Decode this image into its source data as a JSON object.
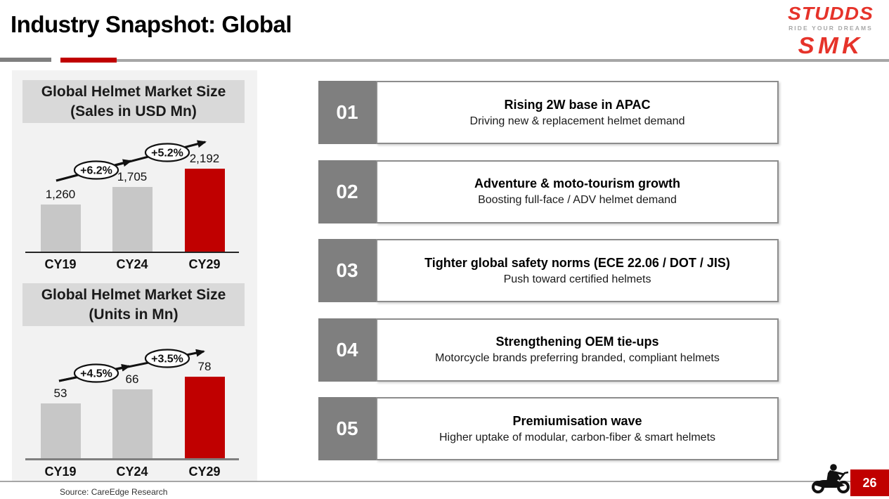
{
  "slide": {
    "title": "Industry Snapshot: Global",
    "page_number": "26",
    "source": "Source: CareEdge Research"
  },
  "logo": {
    "brand": "STUDDS",
    "tagline": "RIDE YOUR DREAMS",
    "sub_brand": "SMK"
  },
  "colors": {
    "accent_red": "#C00000",
    "bar_gray": "#C7C7C7",
    "badge_gray": "#7F7F7F",
    "panel_bg": "#F2F2F2",
    "chart_header_bg": "#D9D9D9",
    "logo_red": "#E6332A"
  },
  "chart_data": [
    {
      "type": "bar",
      "title": "Global Helmet Market Size (Sales in USD Mn)",
      "title_line1": "Global Helmet Market Size",
      "title_line2": "(Sales in USD Mn)",
      "categories": [
        "CY19",
        "CY24",
        "CY29"
      ],
      "values": [
        1260,
        1705,
        2192
      ],
      "value_labels": [
        "1,260",
        "1,705",
        "2,192"
      ],
      "growth_labels": [
        "+6.2%",
        "+5.2%"
      ],
      "bar_colors": [
        "#C7C7C7",
        "#C7C7C7",
        "#C00000"
      ],
      "xlabel": "",
      "ylabel": "Sales in USD Mn",
      "ylim": [
        0,
        2400
      ],
      "grid": false,
      "legend": "none"
    },
    {
      "type": "bar",
      "title": "Global Helmet Market Size (Units in Mn)",
      "title_line1": "Global Helmet Market Size",
      "title_line2": "(Units in Mn)",
      "categories": [
        "CY19",
        "CY24",
        "CY29"
      ],
      "values": [
        53,
        66,
        78
      ],
      "value_labels": [
        "53",
        "66",
        "78"
      ],
      "growth_labels": [
        "+4.5%",
        "+3.5%"
      ],
      "bar_colors": [
        "#C7C7C7",
        "#C7C7C7",
        "#C00000"
      ],
      "xlabel": "",
      "ylabel": "Units in Mn",
      "ylim": [
        0,
        90
      ],
      "grid": false,
      "legend": "none"
    }
  ],
  "insights": [
    {
      "number": "01",
      "title": "Rising 2W base in APAC",
      "subtitle": "Driving new & replacement helmet demand"
    },
    {
      "number": "02",
      "title": "Adventure & moto-tourism growth",
      "subtitle": "Boosting full-face / ADV helmet demand"
    },
    {
      "number": "03",
      "title": "Tighter global safety norms (ECE 22.06 / DOT / JIS)",
      "subtitle": "Push toward certified helmets"
    },
    {
      "number": "04",
      "title": "Strengthening OEM tie-ups",
      "subtitle": "Motorcycle brands preferring branded, compliant helmets"
    },
    {
      "number": "05",
      "title": "Premiumisation wave",
      "subtitle": "Higher uptake of modular, carbon-fiber & smart helmets"
    }
  ]
}
